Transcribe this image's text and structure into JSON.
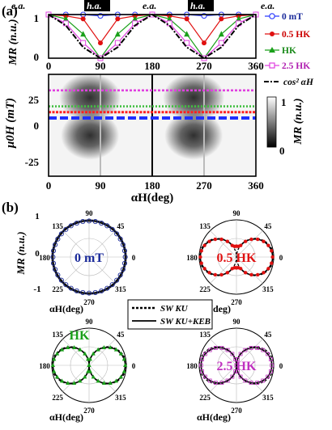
{
  "panel_a": {
    "label": "(a)",
    "top_labels": [
      "e.a.",
      "h.a.",
      "e.a.",
      "h.a.",
      "e.a."
    ],
    "line_plot": {
      "ylabel": "MR (n.u.)",
      "yticks": [
        "1",
        "0"
      ],
      "xticks": [
        "0",
        "90",
        "180",
        "270",
        "360"
      ]
    },
    "map": {
      "ylabel": "μ0H (mT)",
      "yticks": [
        "25",
        "0",
        "-25"
      ],
      "xticks": [
        "0",
        "90",
        "180",
        "270",
        "360"
      ],
      "xlabel": "αH(deg)",
      "colorbar_ticks": [
        "1",
        "0"
      ],
      "colorbar_label": "MR (n.u.)"
    },
    "legend": [
      "0 mT",
      "0.5 HK",
      "HK",
      "2.5 HK",
      "cos² αH"
    ]
  },
  "panel_b": {
    "label": "(b)",
    "ylabel": "MR (n.u.)",
    "y_ticks": [
      "1",
      "0",
      "-1"
    ],
    "angle_labels": [
      "90",
      "45",
      "0",
      "315",
      "270",
      "225",
      "180",
      "135"
    ],
    "axis_label": "αH(deg)",
    "polars": [
      {
        "label": "0 mT",
        "color": "#1a2a9a"
      },
      {
        "label": "0.5 HK",
        "color": "#e01010"
      },
      {
        "label": "HK",
        "color": "#1aa01a"
      },
      {
        "label": "2.5 HK",
        "color": "#c030c0"
      }
    ],
    "legend": [
      "SW KU",
      "SW KU+KEB"
    ]
  },
  "chart_data": [
    {
      "type": "line",
      "x": [
        0,
        30,
        60,
        90,
        120,
        150,
        180,
        210,
        240,
        270,
        300,
        330,
        360
      ],
      "series": [
        {
          "name": "0 mT",
          "values": [
            1,
            1,
            1,
            0.97,
            1,
            1,
            1,
            1,
            1,
            0.97,
            1,
            1,
            1
          ]
        },
        {
          "name": "0.5 HK",
          "values": [
            1,
            0.97,
            0.9,
            0.35,
            0.9,
            0.97,
            1,
            0.97,
            0.9,
            0.35,
            0.9,
            0.97,
            1
          ]
        },
        {
          "name": "HK",
          "values": [
            1,
            0.9,
            0.55,
            0.0,
            0.55,
            0.9,
            1,
            0.9,
            0.55,
            0.0,
            0.55,
            0.9,
            1
          ]
        },
        {
          "name": "2.5 HK",
          "values": [
            1,
            0.8,
            0.35,
            0.0,
            0.35,
            0.8,
            1,
            0.8,
            0.35,
            0.0,
            0.35,
            0.8,
            1
          ]
        },
        {
          "name": "cos² αH",
          "values": [
            1,
            0.75,
            0.25,
            0.0,
            0.25,
            0.75,
            1,
            0.75,
            0.25,
            0.0,
            0.25,
            0.75,
            1
          ]
        }
      ],
      "xlim": [
        0,
        360
      ],
      "ylim": [
        0,
        1
      ]
    },
    {
      "type": "heatmap",
      "xlim": [
        0,
        360
      ],
      "ylim": [
        -40,
        30
      ],
      "value_range": [
        0,
        1
      ],
      "cut_fields": [
        19,
        8,
        4,
        0
      ],
      "cut_colors": [
        "#e040e0",
        "#40c040",
        "#ff2020",
        "#2030ff"
      ]
    }
  ]
}
